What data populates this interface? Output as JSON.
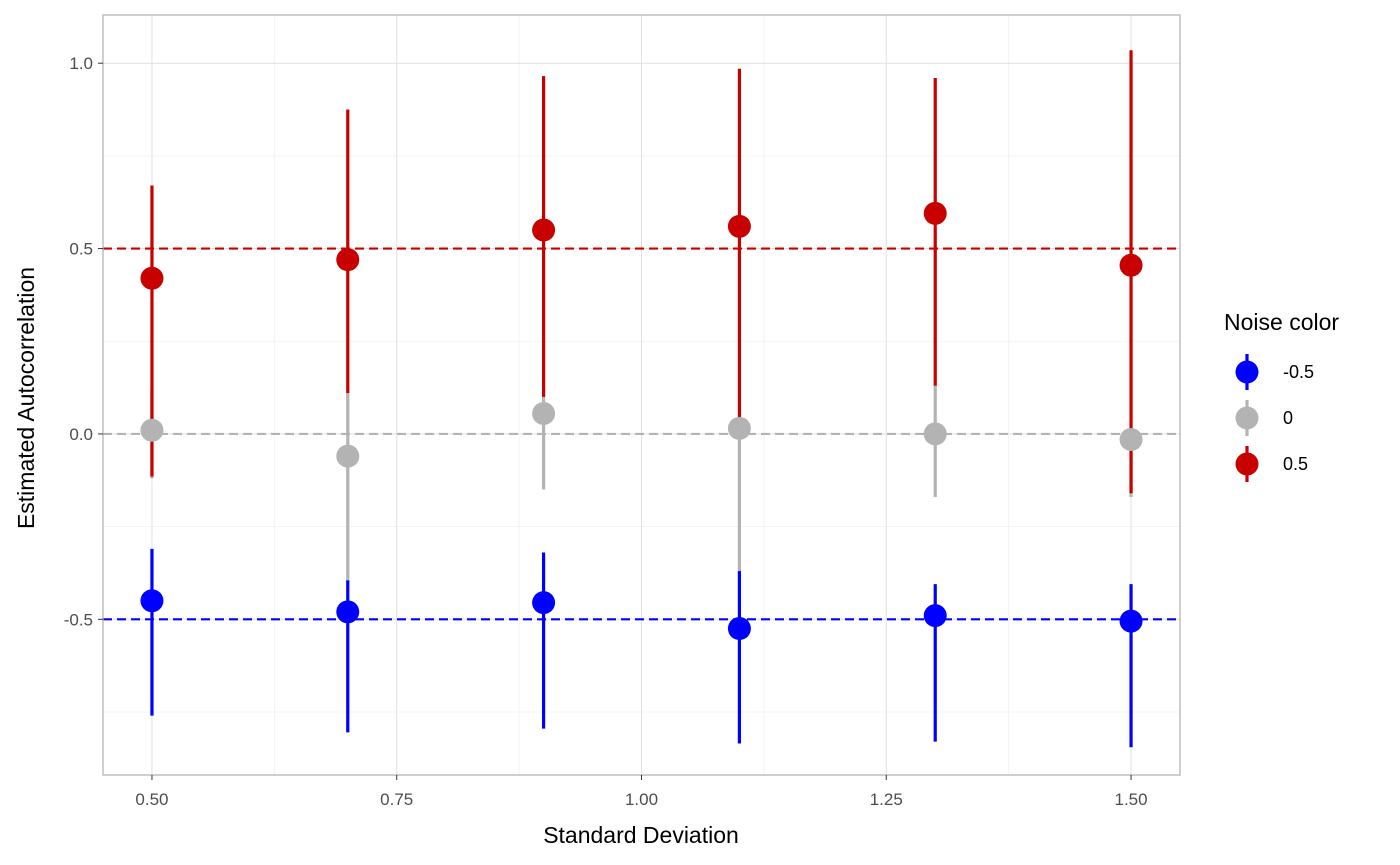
{
  "chart_data": {
    "type": "scatter",
    "title": "",
    "xlabel": "Standard Deviation",
    "ylabel": "Estimated Autocorrelation",
    "xlim": [
      0.45,
      1.55
    ],
    "ylim": [
      -0.92,
      1.13
    ],
    "x_ticks": [
      0.5,
      0.75,
      1.0,
      1.25,
      1.5
    ],
    "x_tick_labels": [
      "0.50",
      "0.75",
      "1.00",
      "1.25",
      "1.50"
    ],
    "y_ticks": [
      -0.5,
      0.0,
      0.5,
      1.0
    ],
    "y_tick_labels": [
      "-0.5",
      "0.0",
      "0.5",
      "1.0"
    ],
    "grid": true,
    "legend": {
      "title": "Noise color",
      "position": "right"
    },
    "series": [
      {
        "name": "0",
        "color": "#b3b3b3",
        "reference": 0.0,
        "x": [
          0.5,
          0.7,
          0.9,
          1.1,
          1.3,
          1.5
        ],
        "y": [
          0.01,
          -0.06,
          0.055,
          0.015,
          0.0,
          -0.015
        ],
        "lower": [
          -0.12,
          -0.4,
          -0.15,
          -0.38,
          -0.17,
          -0.17
        ],
        "upper": [
          0.12,
          0.11,
          0.12,
          0.005,
          0.13,
          0.0
        ]
      },
      {
        "name": "0.5",
        "color": "#c80000",
        "reference": 0.5,
        "x": [
          0.5,
          0.7,
          0.9,
          1.1,
          1.3,
          1.5
        ],
        "y": [
          0.42,
          0.47,
          0.55,
          0.56,
          0.595,
          0.455
        ],
        "lower": [
          -0.115,
          0.11,
          0.1,
          0.01,
          0.13,
          -0.16
        ],
        "upper": [
          0.67,
          0.875,
          0.965,
          0.985,
          0.96,
          1.035
        ]
      },
      {
        "name": "-0.5",
        "color": "#0000ff",
        "reference": -0.5,
        "x": [
          0.5,
          0.7,
          0.9,
          1.1,
          1.3,
          1.5
        ],
        "y": [
          -0.45,
          -0.48,
          -0.455,
          -0.525,
          -0.49,
          -0.505
        ],
        "lower": [
          -0.76,
          -0.805,
          -0.795,
          -0.835,
          -0.83,
          -0.845
        ],
        "upper": [
          -0.31,
          -0.395,
          -0.32,
          -0.37,
          -0.405,
          -0.405
        ]
      }
    ],
    "legend_order": [
      "-0.5",
      "0",
      "0.5"
    ]
  }
}
